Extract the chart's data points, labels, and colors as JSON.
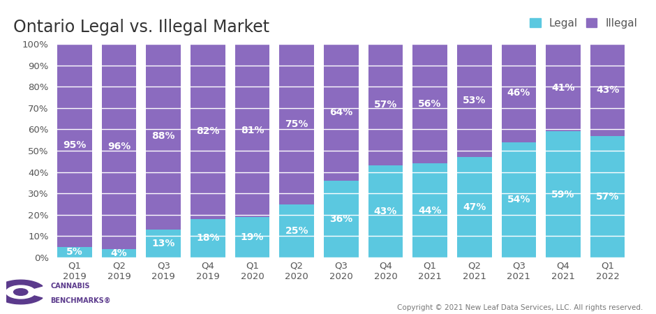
{
  "title": "Ontario Legal vs. Illegal Market",
  "categories": [
    "Q1\n2019",
    "Q2\n2019",
    "Q3\n2019",
    "Q4\n2019",
    "Q1\n2020",
    "Q2\n2020",
    "Q3\n2020",
    "Q4\n2020",
    "Q1\n2021",
    "Q2\n2021",
    "Q3\n2021",
    "Q4\n2021",
    "Q1\n2022"
  ],
  "legal_pct": [
    5,
    4,
    13,
    18,
    19,
    25,
    36,
    43,
    44,
    47,
    54,
    59,
    57
  ],
  "illegal_pct": [
    95,
    96,
    88,
    82,
    81,
    75,
    64,
    57,
    56,
    53,
    46,
    41,
    43
  ],
  "legal_color": "#5bc8e0",
  "illegal_color": "#8b6bbf",
  "background_color": "#ffffff",
  "title_fontsize": 17,
  "label_fontsize": 10,
  "legend_fontsize": 11,
  "tick_fontsize": 9.5,
  "copyright_text": "Copyright © 2021 New Leaf Data Services, LLC. All rights reserved.",
  "ylabel_ticks": [
    "0%",
    "10%",
    "20%",
    "30%",
    "40%",
    "50%",
    "60%",
    "70%",
    "80%",
    "90%",
    "100%"
  ],
  "ytick_vals": [
    0,
    10,
    20,
    30,
    40,
    50,
    60,
    70,
    80,
    90,
    100
  ],
  "logo_text_top": "CANNABIS",
  "logo_text_bottom": "BENCHMARKS",
  "logo_color": "#5b3a8c"
}
